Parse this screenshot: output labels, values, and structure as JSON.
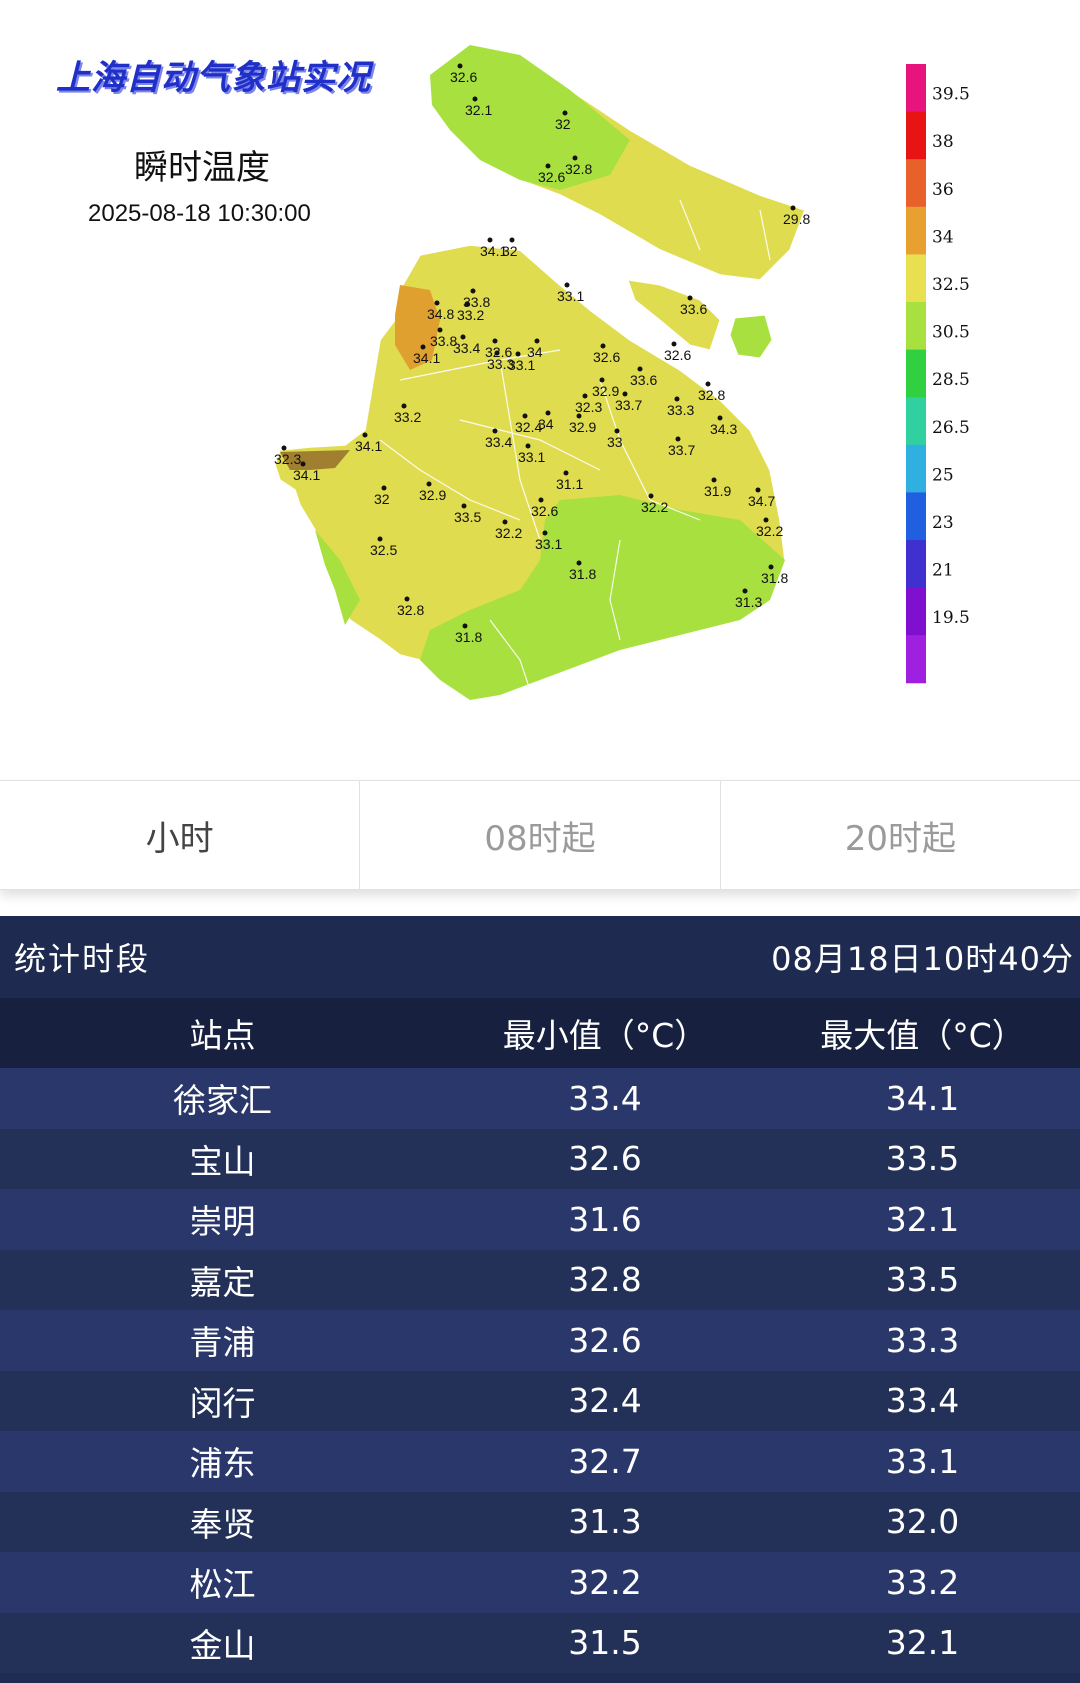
{
  "map": {
    "brand": "上海自动气象站实况",
    "title": "瞬时温度",
    "timestamp": "2025-08-18 10:30:00",
    "legend": [
      "39.5",
      "38",
      "36",
      "34",
      "32.5",
      "30.5",
      "28.5",
      "26.5",
      "25",
      "23",
      "21",
      "19.5"
    ],
    "legend_colors": [
      "#e8147e",
      "#e81414",
      "#e8602a",
      "#e8a030",
      "#e8e050",
      "#a8e040",
      "#30d040",
      "#30d0a0",
      "#30b0e0",
      "#2060e0",
      "#4030d0",
      "#8010d0",
      "#a020e0"
    ],
    "stations": [
      "32.6",
      "32.1",
      "32",
      "32.6",
      "32.8",
      "29.8",
      "34.1",
      "32",
      "33.6",
      "33.1",
      "34.8",
      "33.8",
      "33.2",
      "33.8",
      "33.4",
      "34.1",
      "32.6",
      "34",
      "33.1",
      "33.3",
      "32.6",
      "33.6",
      "32.6",
      "32.9",
      "33.7",
      "33.3",
      "32.8",
      "32.3",
      "32.9",
      "33",
      "34.3",
      "33.2",
      "32.4",
      "34",
      "32.3",
      "34.1",
      "33.4",
      "33.1",
      "33.7",
      "34.1",
      "31.1",
      "31.9",
      "32",
      "32.9",
      "33.5",
      "32.6",
      "32.2",
      "33.1",
      "32.2",
      "34.7",
      "32.2",
      "32.5",
      "31.8",
      "31.8",
      "32.8",
      "31.3",
      "31.8"
    ]
  },
  "tabs": [
    {
      "label": "小时"
    },
    {
      "label": "08时起"
    },
    {
      "label": "20时起"
    }
  ],
  "stats": {
    "period_label": "统计时段",
    "period_value": "08月18日10时40分",
    "columns": [
      "站点",
      "最小值（°C）",
      "最大值（°C）"
    ],
    "rows": [
      {
        "station": "徐家汇",
        "min": "33.4",
        "max": "34.1"
      },
      {
        "station": "宝山",
        "min": "32.6",
        "max": "33.5"
      },
      {
        "station": "崇明",
        "min": "31.6",
        "max": "32.1"
      },
      {
        "station": "嘉定",
        "min": "32.8",
        "max": "33.5"
      },
      {
        "station": "青浦",
        "min": "32.6",
        "max": "33.3"
      },
      {
        "station": "闵行",
        "min": "32.4",
        "max": "33.4"
      },
      {
        "station": "浦东",
        "min": "32.7",
        "max": "33.1"
      },
      {
        "station": "奉贤",
        "min": "31.3",
        "max": "32.0"
      },
      {
        "station": "松江",
        "min": "32.2",
        "max": "33.2"
      },
      {
        "station": "金山",
        "min": "31.5",
        "max": "32.1"
      }
    ]
  }
}
